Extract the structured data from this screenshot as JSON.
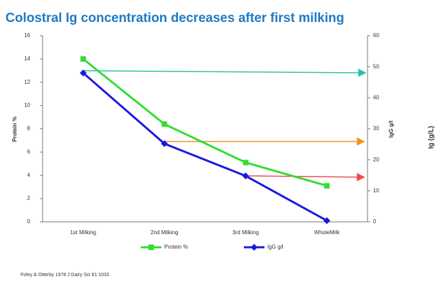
{
  "chart_data": {
    "type": "line",
    "title": "Colostral Ig concentration decreases after first milking",
    "categories": [
      "1st Milking",
      "2nd Milking",
      "3rd Milking",
      "WholeMilk"
    ],
    "series": [
      {
        "name": "Protein %",
        "color": "#33dd33",
        "values": [
          14,
          8.4,
          5.1,
          3.1
        ]
      },
      {
        "name": "IgG g/l",
        "color": "#1a1adf",
        "values": [
          48,
          25.2,
          14.8,
          0.4
        ],
        "axis": "y2"
      }
    ],
    "y_label": "Protein %",
    "y2_label": "IgG g/l",
    "ylim": [
      0,
      16
    ],
    "yticks": [
      0,
      2,
      4,
      6,
      8,
      10,
      12,
      14,
      16
    ],
    "y2lim": [
      0,
      60
    ],
    "y2ticks": [
      0,
      10,
      20,
      30,
      40,
      50,
      60
    ],
    "annotation": "Ig (g/L)",
    "source": "Foley & Otterby 1978 J Dairy Sci 61:1033"
  }
}
